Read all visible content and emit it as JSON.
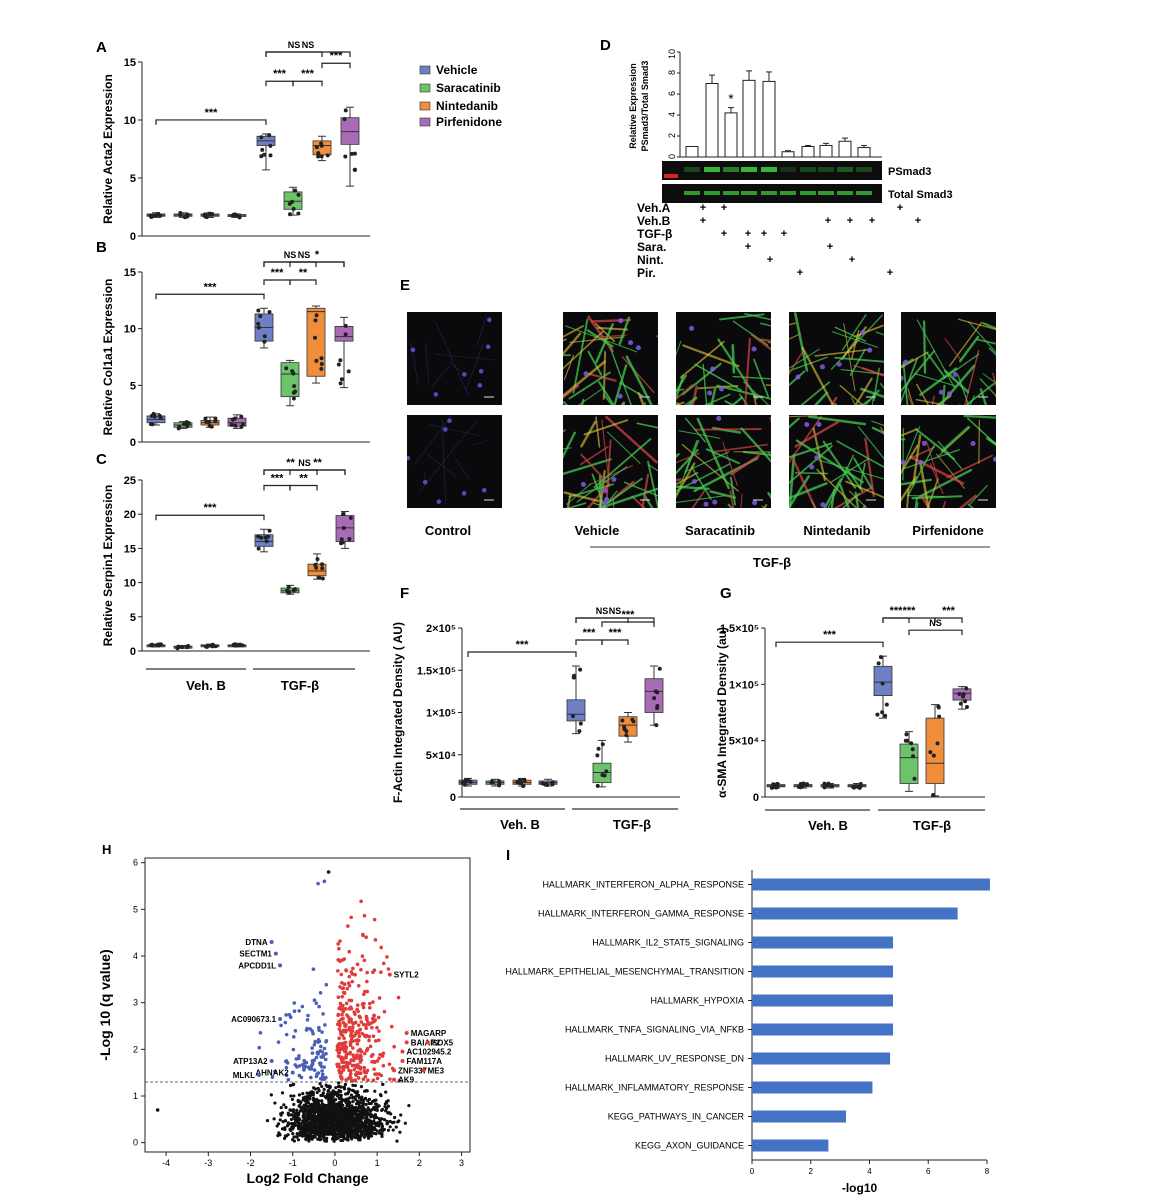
{
  "colors": {
    "Vehicle": "#6f7fc4",
    "Saracatinib": "#6dc36a",
    "Nintedanib": "#f08e3c",
    "Pirfenidone": "#a86bb6",
    "bar_I": "#4472c4",
    "volcano_up": "#e03c3c",
    "volcano_down": "#4a5fb5",
    "volcano_ns": "#111111"
  },
  "panel_letters": {
    "A": "A",
    "B": "B",
    "C": "C",
    "D": "D",
    "E": "E",
    "F": "F",
    "G": "G",
    "H": "H",
    "I": "I"
  },
  "legend": [
    "Vehicle",
    "Saracatinib",
    "Nintedanib",
    "Pirfenidone"
  ],
  "group_labels": {
    "veh_b": "Veh. B",
    "tgf": "TGF-β"
  },
  "panel_D": {
    "blot_labels": [
      "PSmad3",
      "Total Smad3"
    ],
    "row_labels": [
      "Veh.A",
      "Veh.B",
      "TGF-β",
      "Sara.",
      "Nint.",
      "Pir."
    ],
    "plus": "+"
  },
  "panel_E": {
    "labels": [
      "Control",
      "Vehicle",
      "Saracatinib",
      "Nintedanib",
      "Pirfenidone"
    ],
    "group_label": "TGF-β"
  },
  "chart_data": [
    {
      "id": "A",
      "type": "box",
      "ylabel": "Relative Acta2 Expression",
      "ylim": [
        0,
        15
      ],
      "yticks": [
        "0",
        "5",
        "10",
        "15"
      ],
      "boxes": [
        {
          "group": "Vehicle",
          "min": 1.6,
          "q1": 1.7,
          "median": 1.8,
          "q3": 1.9,
          "max": 2.0
        },
        {
          "group": "Saracatinib",
          "min": 1.6,
          "q1": 1.7,
          "median": 1.8,
          "q3": 1.9,
          "max": 2.0
        },
        {
          "group": "Nintedanib",
          "min": 1.6,
          "q1": 1.7,
          "median": 1.8,
          "q3": 1.9,
          "max": 2.0
        },
        {
          "group": "Pirfenidone",
          "min": 1.6,
          "q1": 1.7,
          "median": 1.8,
          "q3": 1.85,
          "max": 1.9
        },
        {
          "group": "Vehicle",
          "min": 5.7,
          "q1": 7.8,
          "median": 8.2,
          "q3": 8.6,
          "max": 8.8
        },
        {
          "group": "Saracatinib",
          "min": 1.8,
          "q1": 2.3,
          "median": 3.0,
          "q3": 3.8,
          "max": 4.2
        },
        {
          "group": "Nintedanib",
          "min": 6.5,
          "q1": 7.0,
          "median": 7.8,
          "q3": 8.2,
          "max": 8.6
        },
        {
          "group": "Pirfenidone",
          "min": 4.3,
          "q1": 7.9,
          "median": 9.0,
          "q3": 10.2,
          "max": 11.1
        }
      ],
      "brackets": [
        [
          "***",
          0,
          4,
          1
        ],
        [
          "***",
          4,
          5,
          1
        ],
        [
          "***",
          5,
          6,
          1
        ],
        [
          "***",
          6,
          7,
          2
        ],
        [
          "NS",
          4,
          6,
          3
        ],
        [
          "NS",
          4,
          7,
          4
        ]
      ]
    },
    {
      "id": "B",
      "type": "box",
      "ylabel": "Relative Col1a1 Expression",
      "ylim": [
        0,
        15
      ],
      "yticks": [
        "0",
        "5",
        "10",
        "15"
      ],
      "boxes": [
        {
          "group": "Vehicle",
          "min": 1.5,
          "q1": 1.7,
          "median": 2.0,
          "q3": 2.3,
          "max": 2.5
        },
        {
          "group": "Saracatinib",
          "min": 1.2,
          "q1": 1.3,
          "median": 1.5,
          "q3": 1.7,
          "max": 1.8
        },
        {
          "group": "Nintedanib",
          "min": 1.3,
          "q1": 1.5,
          "median": 1.7,
          "q3": 1.9,
          "max": 2.2
        },
        {
          "group": "Pirfenidone",
          "min": 1.2,
          "q1": 1.4,
          "median": 1.7,
          "q3": 2.1,
          "max": 2.4
        },
        {
          "group": "Vehicle",
          "min": 8.3,
          "q1": 8.9,
          "median": 10.1,
          "q3": 11.3,
          "max": 11.8
        },
        {
          "group": "Saracatinib",
          "min": 3.2,
          "q1": 4.0,
          "median": 6.0,
          "q3": 7.0,
          "max": 7.2
        },
        {
          "group": "Nintedanib",
          "min": 5.2,
          "q1": 5.8,
          "median": 11.5,
          "q3": 11.8,
          "max": 12.0
        },
        {
          "group": "Pirfenidone",
          "min": 4.8,
          "q1": 8.9,
          "median": 9.3,
          "q3": 10.2,
          "max": 11.0
        }
      ],
      "brackets": [
        [
          "***",
          0,
          4,
          1
        ],
        [
          "***",
          4,
          5,
          1
        ],
        [
          "**",
          5,
          6,
          1
        ],
        [
          "*",
          5,
          7,
          2
        ],
        [
          "NS",
          4,
          6,
          3
        ],
        [
          "NS",
          4,
          7,
          4
        ]
      ]
    },
    {
      "id": "C",
      "type": "box",
      "ylabel": "Relative Serpin1 Expression",
      "ylim": [
        0,
        25
      ],
      "yticks": [
        "0",
        "5",
        "10",
        "15",
        "20",
        "25"
      ],
      "boxes": [
        {
          "group": "Vehicle",
          "min": 0.6,
          "q1": 0.7,
          "median": 0.8,
          "q3": 0.9,
          "max": 1.0
        },
        {
          "group": "Saracatinib",
          "min": 0.4,
          "q1": 0.5,
          "median": 0.6,
          "q3": 0.7,
          "max": 0.8
        },
        {
          "group": "Nintedanib",
          "min": 0.6,
          "q1": 0.7,
          "median": 0.8,
          "q3": 0.9,
          "max": 1.0
        },
        {
          "group": "Pirfenidone",
          "min": 0.6,
          "q1": 0.7,
          "median": 0.8,
          "q3": 0.9,
          "max": 1.0
        },
        {
          "group": "Vehicle",
          "min": 14.5,
          "q1": 15.3,
          "median": 16.0,
          "q3": 17.0,
          "max": 17.8
        },
        {
          "group": "Saracatinib",
          "min": 8.3,
          "q1": 8.5,
          "median": 8.8,
          "q3": 9.2,
          "max": 9.6
        },
        {
          "group": "Nintedanib",
          "min": 10.5,
          "q1": 11.0,
          "median": 11.7,
          "q3": 12.7,
          "max": 14.2
        },
        {
          "group": "Pirfenidone",
          "min": 15.0,
          "q1": 16.0,
          "median": 18.0,
          "q3": 19.8,
          "max": 20.4
        }
      ],
      "brackets": [
        [
          "***",
          0,
          4,
          1
        ],
        [
          "***",
          4,
          5,
          1
        ],
        [
          "**",
          5,
          6,
          1
        ],
        [
          "**",
          5,
          7,
          2
        ],
        [
          "**",
          4,
          6,
          3
        ],
        [
          "NS",
          4,
          7,
          4
        ]
      ]
    },
    {
      "id": "D",
      "type": "bar",
      "ylabel": "Relative Expression PSmad3/Total Smad3",
      "ylim": [
        0,
        10
      ],
      "yticks": [
        "0",
        "2",
        "4",
        "6",
        "8",
        "10"
      ],
      "values": [
        1.0,
        7.0,
        4.2,
        7.3,
        7.2,
        0.5,
        1.0,
        1.1,
        1.5,
        0.9
      ],
      "errors": [
        0.0,
        0.8,
        0.5,
        0.9,
        0.9,
        0.1,
        0.1,
        0.2,
        0.3,
        0.2
      ],
      "annotation": "*"
    },
    {
      "id": "F",
      "type": "box",
      "ylabel": "F-Actin Integrated Density ( AU)",
      "ylim": [
        0,
        200000
      ],
      "yticks": [
        "0",
        "5×10⁴",
        "1×10⁵",
        "1.5×10⁵",
        "2×10⁵"
      ],
      "boxes": [
        {
          "group": "Vehicle",
          "min": 13000,
          "q1": 15000,
          "median": 17000,
          "q3": 20000,
          "max": 22000
        },
        {
          "group": "Saracatinib",
          "min": 13000,
          "q1": 15000,
          "median": 17000,
          "q3": 19000,
          "max": 21000
        },
        {
          "group": "Nintedanib",
          "min": 13000,
          "q1": 15000,
          "median": 17000,
          "q3": 20000,
          "max": 22000
        },
        {
          "group": "Pirfenidone",
          "min": 13000,
          "q1": 15000,
          "median": 17000,
          "q3": 19000,
          "max": 21000
        },
        {
          "group": "Vehicle",
          "min": 75000,
          "q1": 90000,
          "median": 98000,
          "q3": 115000,
          "max": 155000
        },
        {
          "group": "Saracatinib",
          "min": 12000,
          "q1": 17000,
          "median": 29000,
          "q3": 40000,
          "max": 67000
        },
        {
          "group": "Nintedanib",
          "min": 65000,
          "q1": 72000,
          "median": 85000,
          "q3": 95000,
          "max": 100000
        },
        {
          "group": "Pirfenidone",
          "min": 85000,
          "q1": 100000,
          "median": 125000,
          "q3": 140000,
          "max": 155000
        }
      ],
      "brackets": [
        [
          "***",
          0,
          4,
          1
        ],
        [
          "***",
          4,
          5,
          1
        ],
        [
          "***",
          5,
          6,
          1
        ],
        [
          "***",
          5,
          7,
          2
        ],
        [
          "NS",
          4,
          6,
          3
        ],
        [
          "NS",
          4,
          7,
          4
        ]
      ]
    },
    {
      "id": "G",
      "type": "box",
      "ylabel": "α-SMA Integrated Density (au)",
      "ylim": [
        0,
        150000
      ],
      "yticks": [
        "0",
        "5×10⁴",
        "1×10⁵",
        "1.5×10⁵"
      ],
      "boxes": [
        {
          "group": "Vehicle",
          "min": 8000,
          "q1": 9000,
          "median": 10000,
          "q3": 11000,
          "max": 12000
        },
        {
          "group": "Saracatinib",
          "min": 8000,
          "q1": 9000,
          "median": 10000,
          "q3": 11000,
          "max": 12000
        },
        {
          "group": "Nintedanib",
          "min": 8000,
          "q1": 9000,
          "median": 10000,
          "q3": 11000,
          "max": 12000
        },
        {
          "group": "Pirfenidone",
          "min": 8000,
          "q1": 9000,
          "median": 10000,
          "q3": 11000,
          "max": 12000
        },
        {
          "group": "Vehicle",
          "min": 70000,
          "q1": 90000,
          "median": 102000,
          "q3": 116000,
          "max": 125000
        },
        {
          "group": "Saracatinib",
          "min": 5000,
          "q1": 12000,
          "median": 35000,
          "q3": 47000,
          "max": 58000
        },
        {
          "group": "Nintedanib",
          "min": 1000,
          "q1": 12000,
          "median": 30000,
          "q3": 70000,
          "max": 82000
        },
        {
          "group": "Pirfenidone",
          "min": 78000,
          "q1": 86000,
          "median": 92000,
          "q3": 96000,
          "max": 98000
        }
      ],
      "brackets": [
        [
          "***",
          0,
          4,
          1
        ],
        [
          "***",
          4,
          5,
          2
        ],
        [
          "***",
          4,
          6,
          3
        ],
        [
          "NS",
          5,
          7,
          1
        ],
        [
          "***",
          6,
          7,
          2
        ]
      ]
    },
    {
      "id": "H",
      "type": "scatter",
      "xlabel": "Log2 Fold Change",
      "ylabel": "-Log 10 (q value)",
      "xlim": [
        -4.5,
        3.2
      ],
      "ylim": [
        -0.2,
        6.1
      ],
      "xticks": [
        "-4",
        "-3",
        "-2",
        "-1",
        "0",
        "1",
        "2",
        "3"
      ],
      "yticks": [
        "0",
        "1",
        "2",
        "3",
        "4",
        "5",
        "6"
      ],
      "threshold": 1.3,
      "labeled_points": [
        {
          "label": "DTNA",
          "x": -1.5,
          "y": 4.3
        },
        {
          "label": "SECTM1",
          "x": -1.4,
          "y": 4.05
        },
        {
          "label": "APCDD1L",
          "x": -1.3,
          "y": 3.8
        },
        {
          "label": "AC090673.1",
          "x": -1.3,
          "y": 2.65
        },
        {
          "label": "ATP13A2",
          "x": -1.5,
          "y": 1.75
        },
        {
          "label": "AHNAK2",
          "x": -1.0,
          "y": 1.5
        },
        {
          "label": "MLKL",
          "x": -1.8,
          "y": 1.45
        },
        {
          "label": "SYTL2",
          "x": 1.3,
          "y": 3.6
        },
        {
          "label": "MAGARP",
          "x": 1.7,
          "y": 2.35
        },
        {
          "label": "BAIAP2",
          "x": 1.7,
          "y": 2.15
        },
        {
          "label": "SOX5",
          "x": 2.2,
          "y": 2.15
        },
        {
          "label": "AC102945.2",
          "x": 1.6,
          "y": 1.95
        },
        {
          "label": "FAM117A",
          "x": 1.6,
          "y": 1.75
        },
        {
          "label": "ZNF337",
          "x": 1.4,
          "y": 1.55
        },
        {
          "label": "ME3",
          "x": 2.1,
          "y": 1.55
        },
        {
          "label": "AK9",
          "x": 1.4,
          "y": 1.35
        }
      ]
    },
    {
      "id": "I",
      "type": "bar",
      "orientation": "horizontal",
      "xlabel": "-log10",
      "xlim": [
        0,
        8
      ],
      "xticks": [
        "0",
        "2",
        "4",
        "6",
        "8"
      ],
      "categories": [
        "HALLMARK_INTERFERON_ALPHA_RESPONSE",
        "HALLMARK_INTERFERON_GAMMA_RESPONSE",
        "HALLMARK_IL2_STAT5_SIGNALING",
        "HALLMARK_EPITHELIAL_MESENCHYMAL_TRANSITION",
        "HALLMARK_HYPOXIA",
        "HALLMARK_TNFA_SIGNALING_VIA_NFKB",
        "HALLMARK_UV_RESPONSE_DN",
        "HALLMARK_INFLAMMATORY_RESPONSE",
        "KEGG_PATHWAYS_IN_CANCER",
        "KEGG_AXON_GUIDANCE"
      ],
      "values": [
        8.1,
        7.0,
        4.8,
        4.8,
        4.8,
        4.8,
        4.7,
        4.1,
        3.2,
        2.6
      ]
    }
  ]
}
